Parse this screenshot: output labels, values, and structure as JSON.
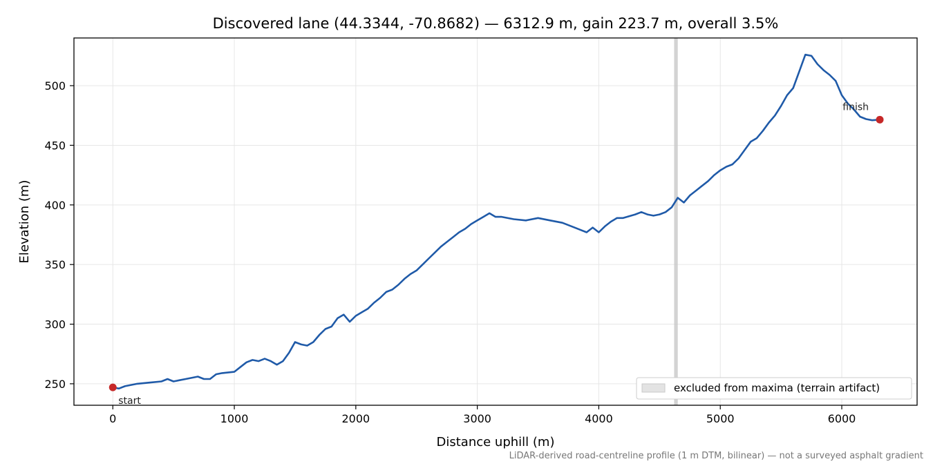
{
  "chart_data": {
    "type": "line",
    "title": "Discovered lane (44.3344, -70.8682) — 6312.9 m, gain 223.7 m, overall 3.5%",
    "xlabel": "Distance uphill (m)",
    "ylabel": "Elevation (m)",
    "xlim": [
      -320,
      6620
    ],
    "ylim": [
      232,
      540
    ],
    "xticks": [
      0,
      1000,
      2000,
      3000,
      4000,
      5000,
      6000
    ],
    "yticks": [
      250,
      300,
      350,
      400,
      450,
      500
    ],
    "xtick_labels": [
      "0",
      "1000",
      "2000",
      "3000",
      "4000",
      "5000",
      "6000"
    ],
    "ytick_labels": [
      "250",
      "300",
      "350",
      "400",
      "450",
      "500"
    ],
    "grid": true,
    "series": [
      {
        "color": "#1f5aa8",
        "x": [
          0,
          50,
          100,
          150,
          200,
          300,
          400,
          450,
          500,
          550,
          600,
          700,
          750,
          800,
          850,
          900,
          1000,
          1050,
          1100,
          1150,
          1200,
          1250,
          1300,
          1350,
          1400,
          1450,
          1500,
          1550,
          1600,
          1650,
          1700,
          1750,
          1800,
          1850,
          1900,
          1950,
          2000,
          2050,
          2100,
          2150,
          2200,
          2250,
          2300,
          2350,
          2400,
          2450,
          2500,
          2550,
          2600,
          2650,
          2700,
          2750,
          2800,
          2850,
          2900,
          2950,
          3000,
          3050,
          3100,
          3150,
          3200,
          3300,
          3400,
          3500,
          3600,
          3700,
          3800,
          3850,
          3900,
          3950,
          4000,
          4050,
          4100,
          4150,
          4200,
          4300,
          4350,
          4400,
          4450,
          4500,
          4550,
          4600,
          4650,
          4700,
          4750,
          4800,
          4850,
          4900,
          4950,
          5000,
          5050,
          5100,
          5150,
          5200,
          5250,
          5300,
          5350,
          5400,
          5450,
          5500,
          5550,
          5600,
          5650,
          5700,
          5750,
          5800,
          5850,
          5900,
          5950,
          6000,
          6050,
          6100,
          6150,
          6200,
          6250,
          6312.9
        ],
        "y": [
          247,
          246,
          248,
          249,
          250,
          251,
          252,
          254,
          252,
          253,
          254,
          256,
          254,
          254,
          258,
          259,
          260,
          264,
          268,
          270,
          269,
          271,
          269,
          266,
          269,
          276,
          285,
          283,
          282,
          285,
          291,
          296,
          298,
          305,
          308,
          302,
          307,
          310,
          313,
          318,
          322,
          327,
          329,
          333,
          338,
          342,
          345,
          350,
          355,
          360,
          365,
          369,
          373,
          377,
          380,
          384,
          387,
          390,
          393,
          390,
          390,
          388,
          387,
          389,
          387,
          385,
          381,
          379,
          377,
          381,
          377,
          382,
          386,
          389,
          389,
          392,
          394,
          392,
          391,
          392,
          394,
          398,
          406,
          402,
          408,
          412,
          416,
          420,
          425,
          429,
          432,
          434,
          439,
          446,
          453,
          456,
          462,
          469,
          475,
          483,
          492,
          498,
          512,
          526,
          525,
          518,
          513,
          509,
          504,
          492,
          485,
          480,
          474,
          472,
          471,
          471.5
        ]
      }
    ],
    "markers": [
      {
        "x": 0,
        "y": 247,
        "color": "#c62828",
        "label": "start"
      },
      {
        "x": 6312.9,
        "y": 471.5,
        "color": "#c62828",
        "label": "finish"
      }
    ],
    "excluded_span": {
      "x": [
        4620,
        4650
      ],
      "color": "#c8c8c8"
    },
    "legend": {
      "placement": "lower-right",
      "label": "excluded from maxima (terrain artifact)"
    },
    "footnote": "LiDAR-derived road-centreline profile (1 m DTM, bilinear) — not a surveyed asphalt gradient"
  }
}
